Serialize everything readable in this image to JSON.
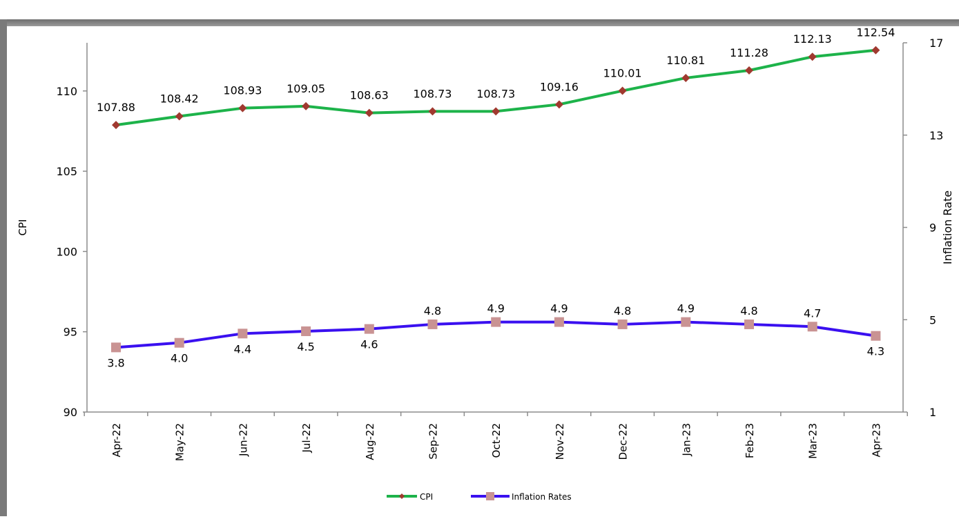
{
  "header": {
    "clipped_title": ""
  },
  "chart_data": {
    "type": "line",
    "categories": [
      "Apr-22",
      "May-22",
      "Jun-22",
      "Jul-22",
      "Aug-22",
      "Sep-22",
      "Oct-22",
      "Nov-22",
      "Dec-22",
      "Jan-23",
      "Feb-23",
      "Mar-23",
      "Apr-23"
    ],
    "series": [
      {
        "name": "CPI",
        "axis": "left",
        "color": "#1db34a",
        "marker_color": "#a0392f",
        "marker": "diamond",
        "values": [
          107.88,
          108.42,
          108.93,
          109.05,
          108.63,
          108.73,
          108.73,
          109.16,
          110.01,
          110.81,
          111.28,
          112.13,
          112.54
        ],
        "labels": [
          "107.88",
          "108.42",
          "108.93",
          "109.05",
          "108.63",
          "108.73",
          "108.73",
          "109.16",
          "110.01",
          "110.81",
          "111.28",
          "112.13",
          "112.54"
        ]
      },
      {
        "name": "Inflation Rates",
        "axis": "right",
        "color": "#3a10f0",
        "marker_color": "#c99393",
        "marker": "square",
        "values": [
          3.8,
          4.0,
          4.4,
          4.5,
          4.6,
          4.8,
          4.9,
          4.9,
          4.8,
          4.9,
          4.8,
          4.7,
          4.3
        ],
        "labels": [
          "3.8",
          "4.0",
          "4.4",
          "4.5",
          "4.6",
          "4.8",
          "4.9",
          "4.9",
          "4.8",
          "4.9",
          "4.8",
          "4.7",
          "4.3"
        ]
      }
    ],
    "y_left": {
      "label": "CPI",
      "ylim": [
        90,
        113
      ],
      "ticks": [
        90,
        95,
        100,
        105,
        110
      ],
      "tick_labels": [
        "90",
        "95",
        "100",
        "105",
        "110"
      ]
    },
    "y_right": {
      "label": "Inflation Rate",
      "ylim": [
        1,
        17
      ],
      "ticks": [
        1,
        5,
        9,
        13,
        17
      ],
      "tick_labels": [
        "1",
        "5",
        "9",
        "13",
        "17"
      ]
    },
    "grid": false,
    "legend_position": "bottom-center"
  }
}
